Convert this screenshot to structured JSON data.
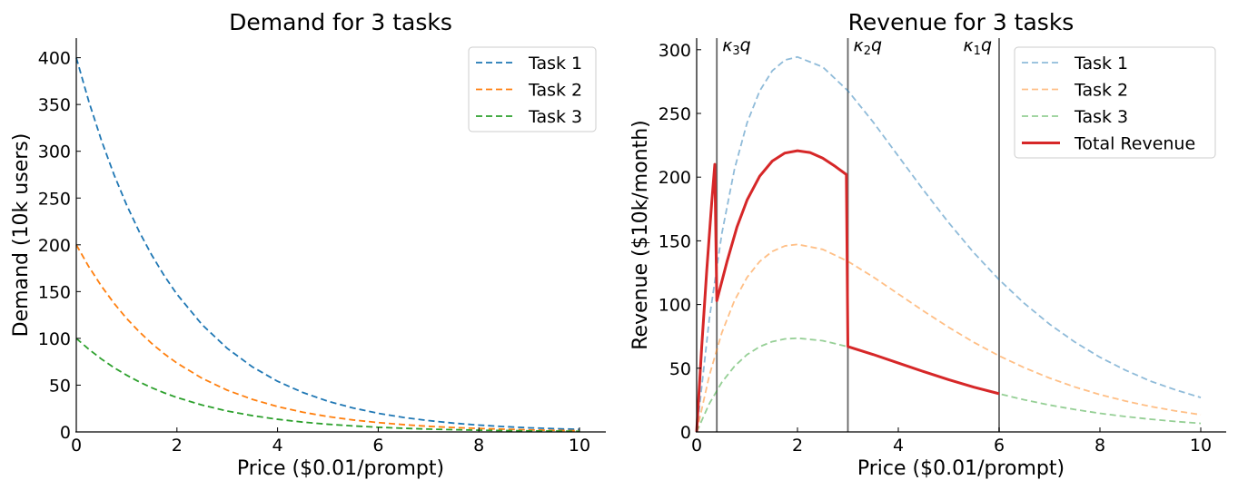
{
  "chart_data": [
    {
      "type": "line",
      "title": "Demand for 3 tasks",
      "xlabel": "Price ($0.01/prompt)",
      "ylabel": "Demand (10k users)",
      "xlim": [
        0,
        10.5
      ],
      "ylim": [
        0,
        420
      ],
      "xticks": [
        0,
        2,
        4,
        6,
        8,
        10
      ],
      "yticks": [
        0,
        50,
        100,
        150,
        200,
        250,
        300,
        350,
        400
      ],
      "grid": false,
      "legend_position": "upper right",
      "x": [
        0,
        0.25,
        0.5,
        0.75,
        1,
        1.25,
        1.5,
        1.75,
        2,
        2.5,
        3,
        3.5,
        4,
        4.5,
        5,
        5.5,
        6,
        6.5,
        7,
        7.5,
        8,
        8.5,
        9,
        9.5,
        10
      ],
      "series": [
        {
          "name": "Task 1",
          "color": "#1f77b4",
          "style": "dashed",
          "values": [
            400,
            353,
            311.5,
            274.9,
            242.6,
            214.1,
            189.0,
            166.8,
            147.2,
            114.6,
            89.3,
            69.5,
            54.1,
            42.2,
            32.8,
            25.6,
            19.9,
            15.5,
            12.1,
            9.4,
            7.3,
            5.7,
            4.4,
            3.5,
            2.7
          ]
        },
        {
          "name": "Task 2",
          "color": "#ff7f0e",
          "style": "dashed",
          "values": [
            200,
            176.5,
            155.8,
            137.5,
            121.3,
            107.1,
            94.5,
            83.4,
            73.6,
            57.3,
            44.6,
            34.8,
            27.1,
            21.1,
            16.4,
            12.8,
            10.0,
            7.8,
            6.0,
            4.7,
            3.7,
            2.9,
            2.2,
            1.7,
            1.3
          ]
        },
        {
          "name": "Task 3",
          "color": "#2ca02c",
          "style": "dashed",
          "values": [
            100,
            88.3,
            77.9,
            68.7,
            60.7,
            53.5,
            47.2,
            41.7,
            36.8,
            28.7,
            22.3,
            17.4,
            13.5,
            10.5,
            8.2,
            6.4,
            5.0,
            3.9,
            3.0,
            2.4,
            1.8,
            1.4,
            1.1,
            0.9,
            0.7
          ]
        }
      ]
    },
    {
      "type": "line",
      "title": "Revenue for 3 tasks",
      "xlabel": "Price ($0.01/prompt)",
      "ylabel": "Revenue ($10k/month)",
      "xlim": [
        0,
        10.5
      ],
      "ylim": [
        0,
        310
      ],
      "xticks": [
        0,
        2,
        4,
        6,
        8,
        10
      ],
      "yticks": [
        0,
        50,
        100,
        150,
        200,
        250,
        300
      ],
      "grid": false,
      "legend_position": "upper right",
      "vlines": [
        {
          "x": 0.4,
          "label": "κ3q",
          "base": "κ",
          "sub": "3",
          "tail": "q"
        },
        {
          "x": 3.0,
          "label": "κ2q",
          "base": "κ",
          "sub": "2",
          "tail": "q"
        },
        {
          "x": 6.0,
          "label": "κ1q",
          "base": "κ",
          "sub": "1",
          "tail": "q"
        }
      ],
      "x": [
        0,
        0.25,
        0.5,
        0.75,
        1,
        1.25,
        1.5,
        1.75,
        2,
        2.5,
        3,
        3.5,
        4,
        4.5,
        5,
        5.5,
        6,
        6.5,
        7,
        7.5,
        8,
        8.5,
        9,
        9.5,
        10
      ],
      "series": [
        {
          "name": "Task 1",
          "color": "#1f77b4",
          "style": "dashed",
          "alpha": 0.5,
          "values": [
            0,
            88.3,
            155.8,
            206.2,
            242.6,
            267.6,
            283.5,
            291.9,
            294.3,
            286.5,
            267.8,
            243.3,
            216.5,
            189.8,
            164.2,
            140.6,
            119.5,
            100.9,
            84.6,
            70.6,
            58.6,
            48.6,
            39.9,
            33.0,
            27.0
          ]
        },
        {
          "name": "Task 2",
          "color": "#ff7f0e",
          "style": "dashed",
          "alpha": 0.5,
          "values": [
            0,
            44.1,
            77.9,
            103.1,
            121.3,
            133.8,
            141.7,
            146.0,
            147.2,
            143.3,
            133.9,
            121.7,
            108.3,
            94.9,
            82.1,
            70.3,
            59.7,
            50.4,
            42.3,
            35.3,
            29.3,
            24.3,
            20.0,
            16.5,
            13.5
          ]
        },
        {
          "name": "Task 3",
          "color": "#2ca02c",
          "style": "dashed",
          "alpha": 0.5,
          "values": [
            0,
            22.1,
            39.0,
            51.5,
            60.7,
            66.9,
            70.9,
            73.0,
            73.6,
            71.6,
            66.9,
            60.8,
            54.1,
            47.4,
            41.0,
            35.1,
            29.9,
            25.2,
            21.1,
            17.6,
            14.6,
            12.1,
            10.0,
            8.2,
            6.7
          ]
        },
        {
          "name": "Total Revenue",
          "color": "#d62728",
          "style": "solid",
          "linewidth": 3,
          "points": [
            [
              0,
              0
            ],
            [
              0.1,
              66.6
            ],
            [
              0.2,
              126.7
            ],
            [
              0.3,
              180.7
            ],
            [
              0.36,
              210
            ],
            [
              0.4,
              103
            ],
            [
              0.6,
              133.4
            ],
            [
              0.8,
              160.9
            ],
            [
              1.0,
              182.0
            ],
            [
              1.25,
              200.7
            ],
            [
              1.5,
              212.6
            ],
            [
              1.75,
              218.9
            ],
            [
              2.0,
              220.7
            ],
            [
              2.25,
              219.3
            ],
            [
              2.5,
              214.9
            ],
            [
              2.75,
              208.4
            ],
            [
              2.97,
              202
            ],
            [
              3.0,
              67
            ],
            [
              3.5,
              60.8
            ],
            [
              4.0,
              54.1
            ],
            [
              4.5,
              47.4
            ],
            [
              5.0,
              41.0
            ],
            [
              5.5,
              35.1
            ],
            [
              6.0,
              30
            ]
          ]
        }
      ]
    }
  ]
}
